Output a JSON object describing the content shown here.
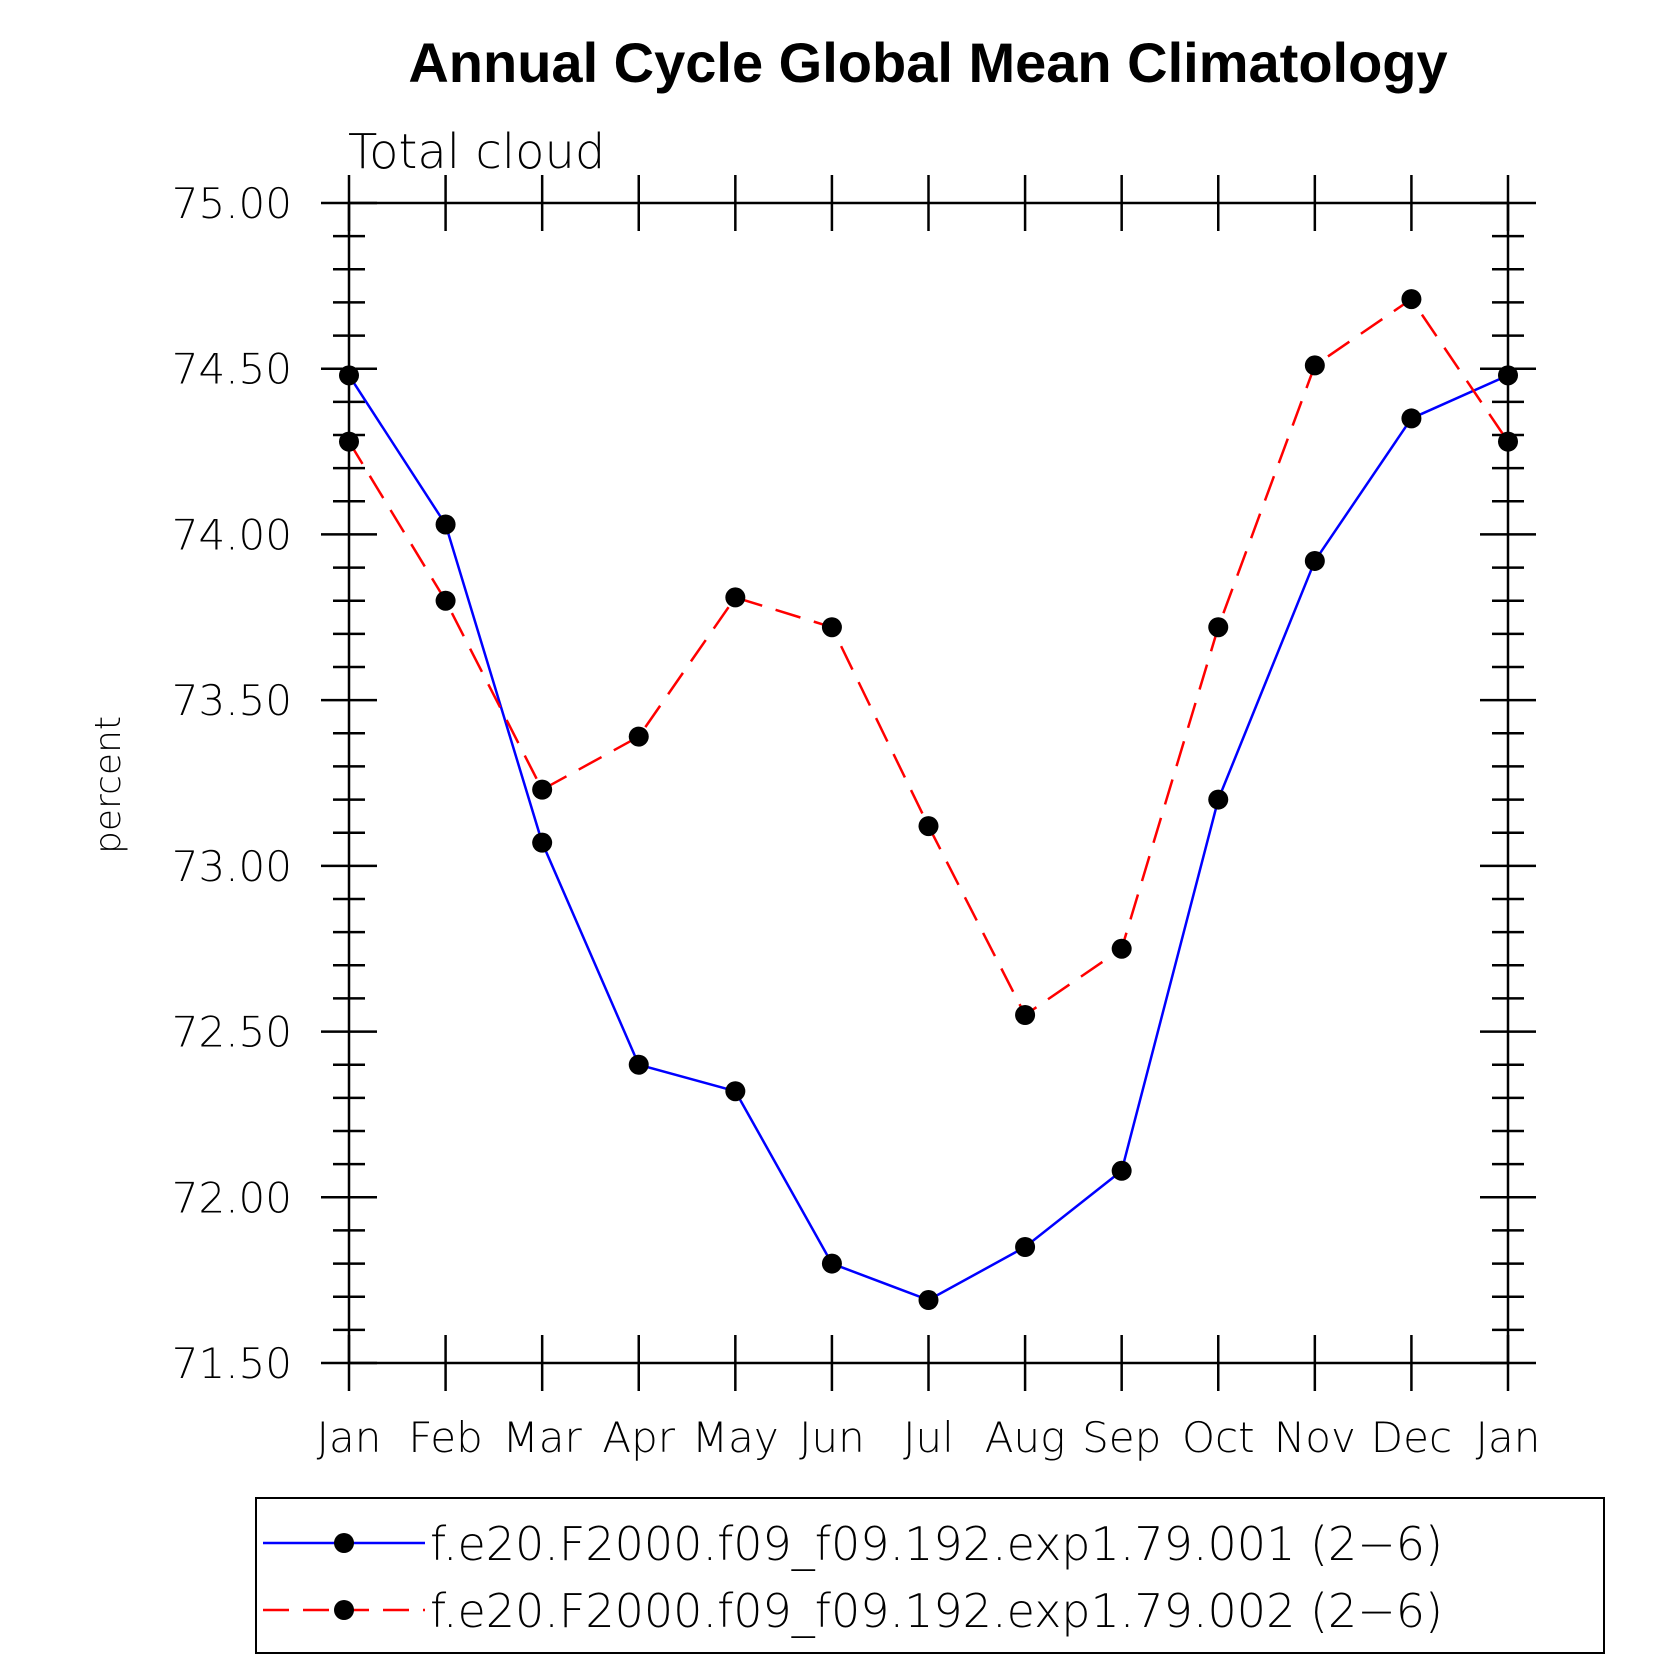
{
  "chart_data": {
    "type": "line",
    "title": "Annual Cycle Global Mean Climatology",
    "subtitle": "Total cloud",
    "xlabel": "",
    "ylabel": "percent",
    "categories": [
      "Jan",
      "Feb",
      "Mar",
      "Apr",
      "May",
      "Jun",
      "Jul",
      "Aug",
      "Sep",
      "Oct",
      "Nov",
      "Dec",
      "Jan"
    ],
    "ylim": [
      71.5,
      75.0
    ],
    "yticks": [
      "71.50",
      "72.00",
      "72.50",
      "73.00",
      "73.50",
      "74.00",
      "74.50",
      "75.00"
    ],
    "grid": false,
    "legend_position": "bottom",
    "series": [
      {
        "name": "f.e20.F2000.f09_f09.192.exp1.79.001 (2−6)",
        "color": "#0000ff",
        "line_style": "solid",
        "marker": "filled-circle",
        "marker_color": "#000000",
        "values": [
          74.48,
          74.03,
          73.07,
          72.4,
          72.32,
          71.8,
          71.69,
          71.85,
          72.08,
          73.2,
          73.92,
          74.35,
          74.48
        ]
      },
      {
        "name": "f.e20.F2000.f09_f09.192.exp1.79.002 (2−6)",
        "color": "#ff0000",
        "line_style": "dashed",
        "marker": "filled-circle",
        "marker_color": "#000000",
        "values": [
          74.28,
          73.8,
          73.23,
          73.39,
          73.81,
          73.72,
          73.12,
          72.55,
          72.75,
          73.72,
          74.51,
          74.71,
          74.28
        ]
      }
    ]
  }
}
